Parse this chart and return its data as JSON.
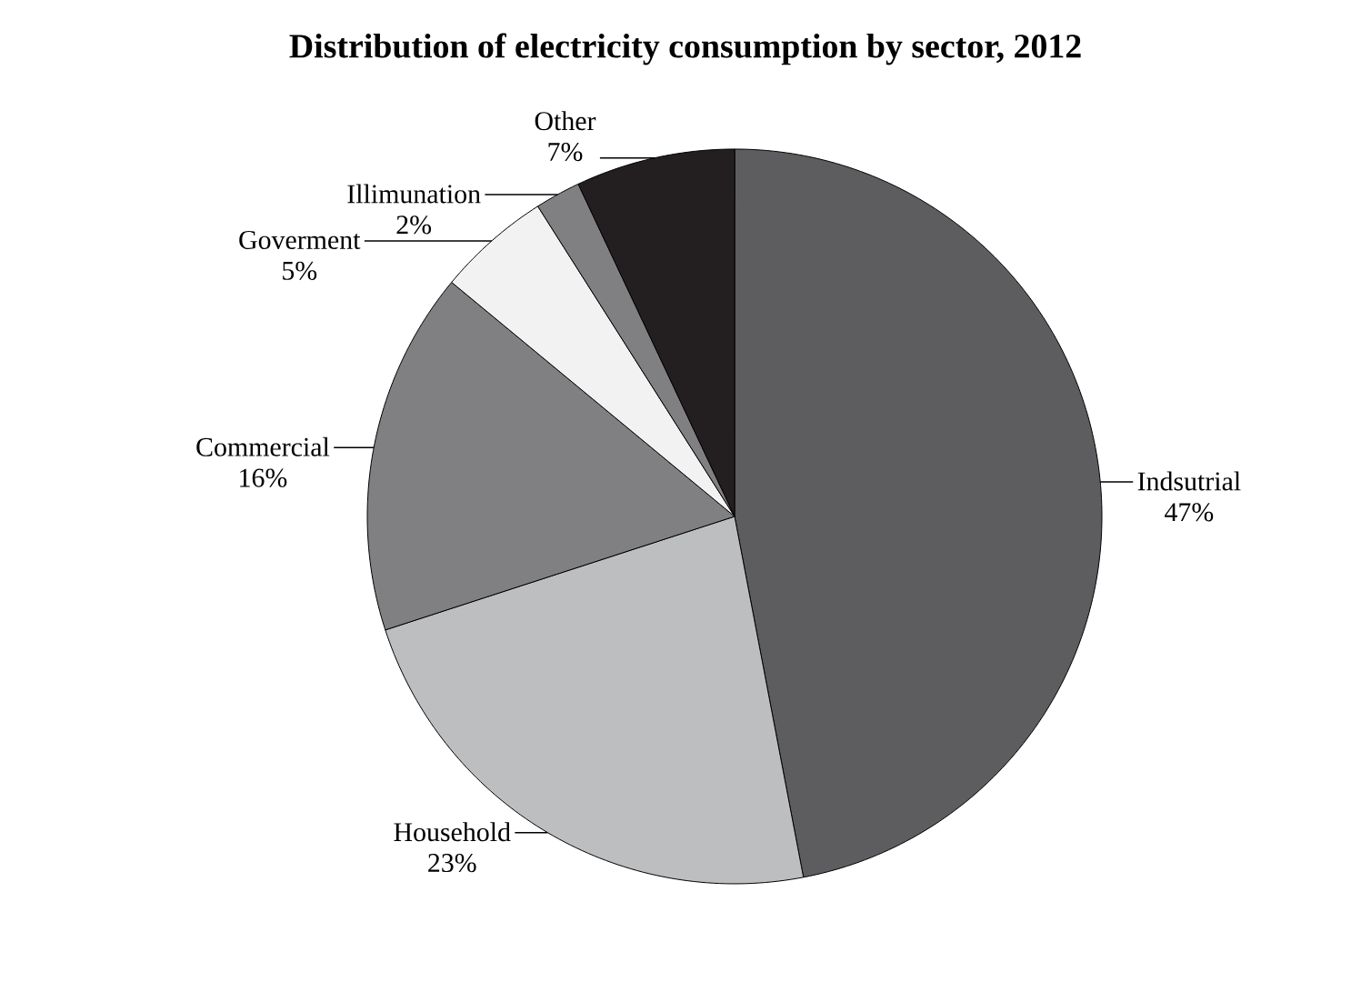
{
  "chart_data": {
    "type": "pie",
    "title": "Distribution of electricity consumption by sector, 2012",
    "categories": [
      "Indsutrial",
      "Household",
      "Commercial",
      "Goverment",
      "Illimunation",
      "Other"
    ],
    "values": [
      47,
      23,
      16,
      5,
      2,
      7
    ],
    "colors": [
      "#5d5d5f",
      "#bdbec0",
      "#808083",
      "#f2f2f2",
      "#808083",
      "#231f20"
    ],
    "value_labels": [
      "47%",
      "23%",
      "16%",
      "5%",
      "2%",
      "7%"
    ]
  }
}
